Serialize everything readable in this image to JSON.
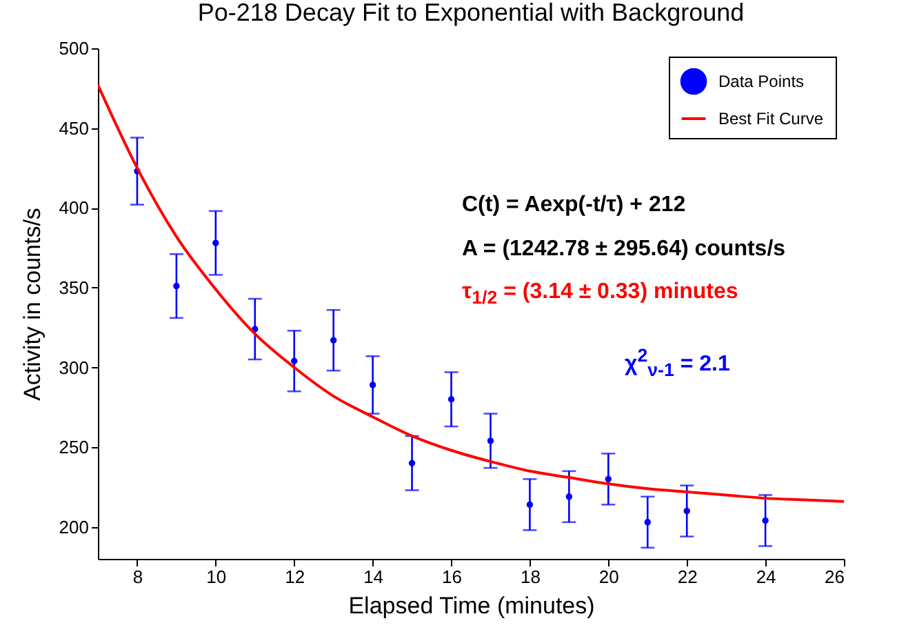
{
  "chart_data": {
    "type": "scatter",
    "title": "Po-218 Decay Fit to Exponential with Background",
    "xlabel": "Elapsed Time (minutes)",
    "ylabel": "Activity in counts/s",
    "annotations": [
      "C(t) = Aexp(-t/τ) + 212",
      "A = (1242.78 ± 295.64) counts/s",
      "τ$_{1/2}$ = (3.14 ± 0.33) minutes",
      "χ$^{2}$$_{ν-1}$ = 2.1"
    ],
    "x": [
      8,
      9,
      10,
      11,
      12,
      13,
      14,
      15,
      16,
      17,
      18,
      19,
      20,
      21,
      22,
      23,
      24
    ],
    "series": [
      {
        "name": "Data Points",
        "color": "#0000ff",
        "marker": "circle",
        "values": [
          423,
          351,
          378,
          324,
          304,
          317,
          289,
          240,
          280,
          254,
          214,
          219,
          230,
          203,
          210,
          null,
          204
        ],
        "errors": [
          21,
          20,
          20,
          19,
          19,
          19,
          18,
          17,
          17,
          17,
          16,
          16,
          16,
          16,
          16,
          null,
          16
        ]
      },
      {
        "name": "Best Fit Curve",
        "type": "line",
        "color": "#ff0000",
        "marker": "none",
        "x": [
          7,
          8,
          9,
          10,
          11,
          12,
          13,
          14,
          15,
          16,
          17,
          18,
          19,
          20,
          21,
          22,
          23,
          24,
          25,
          26
        ],
        "values": [
          477,
          425,
          382,
          349,
          321,
          300,
          282,
          269,
          257,
          248,
          241,
          235,
          231,
          227,
          224,
          222,
          220,
          218,
          217,
          216
        ]
      }
    ],
    "xlim": [
      7,
      26
    ],
    "xticks": [
      8,
      10,
      12,
      14,
      16,
      18,
      20,
      22,
      24,
      26
    ],
    "ylim": [
      180,
      500
    ],
    "yticks": [
      200,
      250,
      300,
      350,
      400,
      450,
      500
    ],
    "grid": false,
    "legend": "top right",
    "line_style": "solid"
  }
}
